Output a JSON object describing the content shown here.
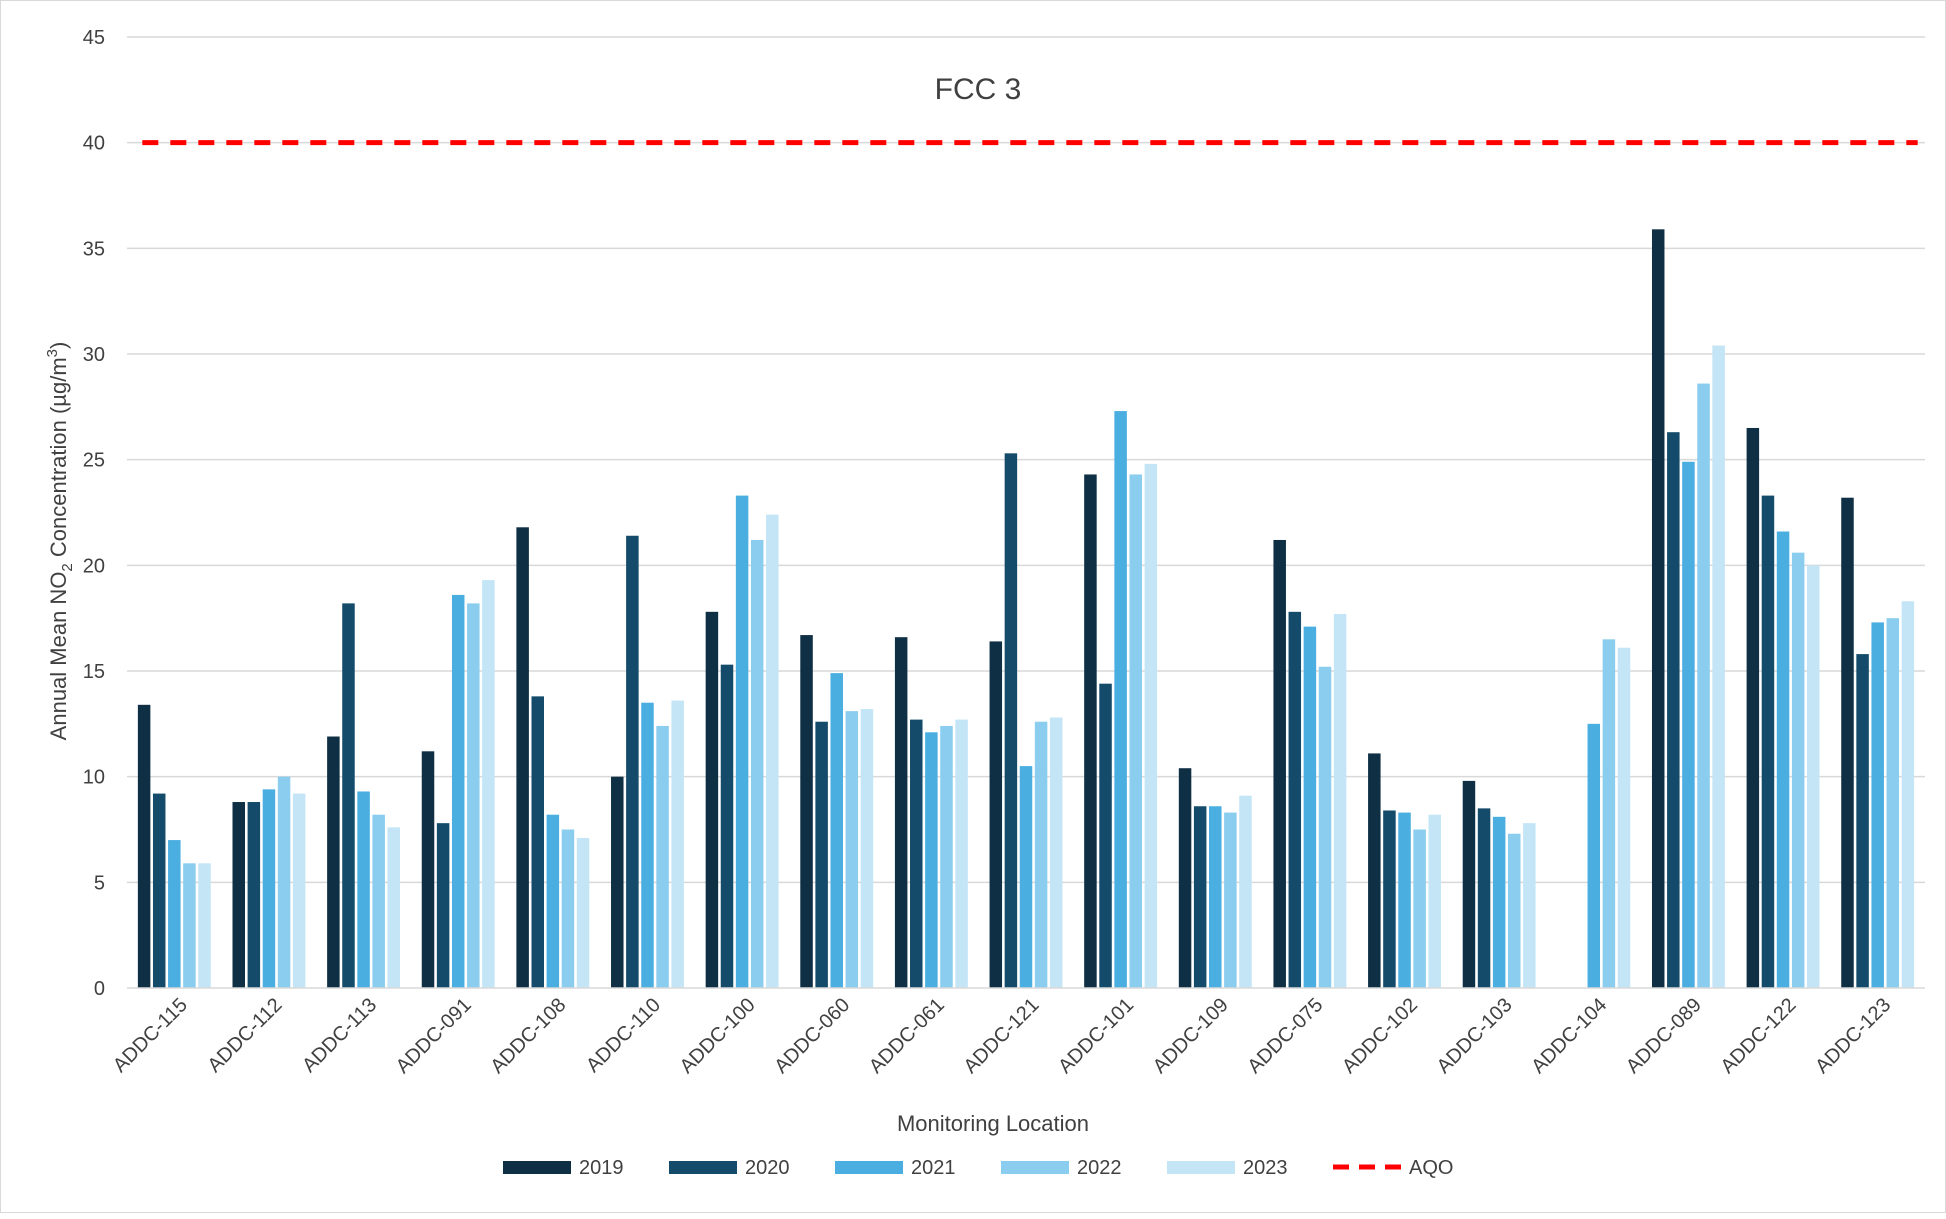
{
  "chart_data": {
    "type": "bar",
    "title": "FCC 3",
    "xlabel": "Monitoring Location",
    "ylabel": {
      "prefix": "Annual Mean NO",
      "sub": "2",
      "middle": " Concentration (µg/m",
      "sup": "3",
      "suffix": ")"
    },
    "ylim": [
      0,
      45
    ],
    "yticks": [
      0,
      5,
      10,
      15,
      20,
      25,
      30,
      35,
      40,
      45
    ],
    "grid": true,
    "legend_position": "bottom",
    "categories": [
      "ADDC-115",
      "ADDC-112",
      "ADDC-113",
      "ADDC-091",
      "ADDC-108",
      "ADDC-110",
      "ADDC-100",
      "ADDC-060",
      "ADDC-061",
      "ADDC-121",
      "ADDC-101",
      "ADDC-109",
      "ADDC-075",
      "ADDC-102",
      "ADDC-103",
      "ADDC-104",
      "ADDC-089",
      "ADDC-122",
      "ADDC-123"
    ],
    "series": [
      {
        "name": "2019",
        "color": "#0e2f44",
        "values": [
          13.4,
          8.8,
          11.9,
          11.2,
          21.8,
          10.0,
          17.8,
          16.7,
          16.6,
          16.4,
          24.3,
          10.4,
          21.2,
          11.1,
          9.8,
          null,
          35.9,
          26.5,
          23.2
        ]
      },
      {
        "name": "2020",
        "color": "#154b6a",
        "values": [
          9.2,
          8.8,
          18.2,
          7.8,
          13.8,
          21.4,
          15.3,
          12.6,
          12.7,
          25.3,
          14.4,
          8.6,
          17.8,
          8.4,
          8.5,
          null,
          26.3,
          23.3,
          15.8
        ]
      },
      {
        "name": "2021",
        "color": "#4baee1",
        "values": [
          7.0,
          9.4,
          9.3,
          18.6,
          8.2,
          13.5,
          23.3,
          14.9,
          12.1,
          10.5,
          27.3,
          8.6,
          17.1,
          8.3,
          8.1,
          12.5,
          24.9,
          21.6,
          17.3
        ]
      },
      {
        "name": "2022",
        "color": "#8acdee",
        "values": [
          5.9,
          10.0,
          8.2,
          18.2,
          7.5,
          12.4,
          21.2,
          13.1,
          12.4,
          12.6,
          24.3,
          8.3,
          15.2,
          7.5,
          7.3,
          16.5,
          28.6,
          20.6,
          17.5
        ]
      },
      {
        "name": "2023",
        "color": "#c3e5f6",
        "values": [
          5.9,
          9.2,
          7.6,
          19.3,
          7.1,
          13.6,
          22.4,
          13.2,
          12.7,
          12.8,
          24.8,
          9.1,
          17.7,
          8.2,
          7.8,
          16.1,
          30.4,
          20.0,
          18.3
        ]
      }
    ],
    "reference_line": {
      "name": "AQO",
      "value": 40,
      "color": "#ff0000",
      "style": "dashed"
    }
  }
}
